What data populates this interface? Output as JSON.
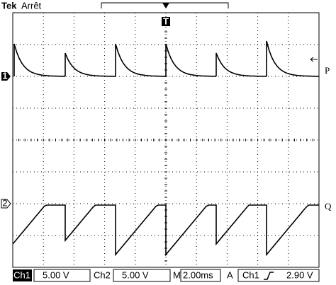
{
  "header": {
    "brand": "Tek",
    "status": "Arrêt"
  },
  "markers": {
    "trigger": "T",
    "channel1": "1",
    "channel2": "2",
    "trace1": "P",
    "trace2": "Q"
  },
  "status_bar": {
    "ch1_label": "Ch1",
    "ch1_scale": "5.00 V",
    "ch2_label": "Ch2",
    "ch2_scale": "5.00 V",
    "time_label": "M",
    "time_scale": "2.00ms",
    "trigger_mode": "A",
    "trigger_source": "Ch1",
    "trigger_level": "2.90 V"
  }
}
